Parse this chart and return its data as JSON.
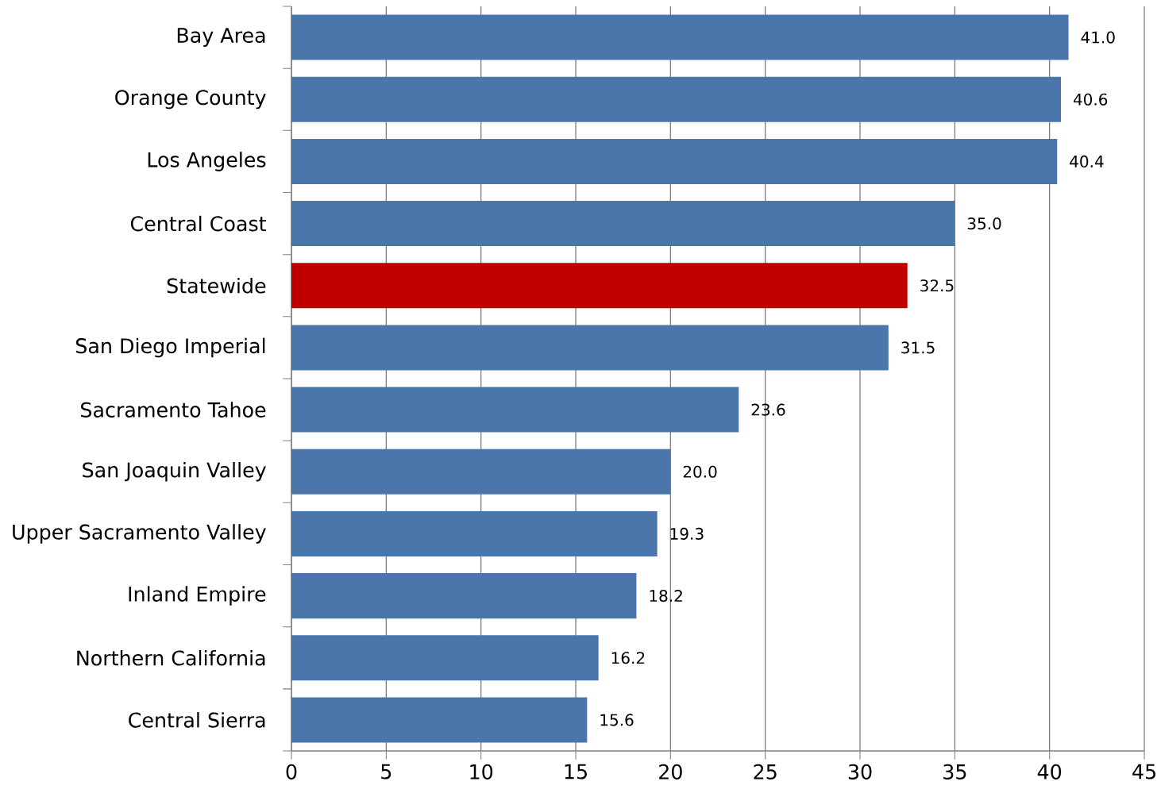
{
  "chart_data": {
    "type": "bar",
    "orientation": "horizontal",
    "categories": [
      "Bay Area",
      "Orange County",
      "Los Angeles",
      "Central Coast",
      "Statewide",
      "San Diego Imperial",
      "Sacramento Tahoe",
      "San Joaquin Valley",
      "Upper Sacramento Valley",
      "Inland Empire",
      "Northern California",
      "Central Sierra"
    ],
    "values": [
      41.0,
      40.6,
      40.4,
      35.0,
      32.5,
      31.5,
      23.6,
      20.0,
      19.3,
      18.2,
      16.2,
      15.6
    ],
    "value_labels": [
      "41.0",
      "40.6",
      "40.4",
      "35.0",
      "32.5",
      "31.5",
      "23.6",
      "20.0",
      "19.3",
      "18.2",
      "16.2",
      "15.6"
    ],
    "colors": [
      "#4a76ab",
      "#4a76ab",
      "#4a76ab",
      "#4a76ab",
      "#c00000",
      "#4a76ab",
      "#4a76ab",
      "#4a76ab",
      "#4a76ab",
      "#4a76ab",
      "#4a76ab",
      "#4a76ab"
    ],
    "xlim": [
      0,
      45
    ],
    "xticks": [
      0,
      5,
      10,
      15,
      20,
      25,
      30,
      35,
      40,
      45
    ],
    "grid": "x"
  }
}
